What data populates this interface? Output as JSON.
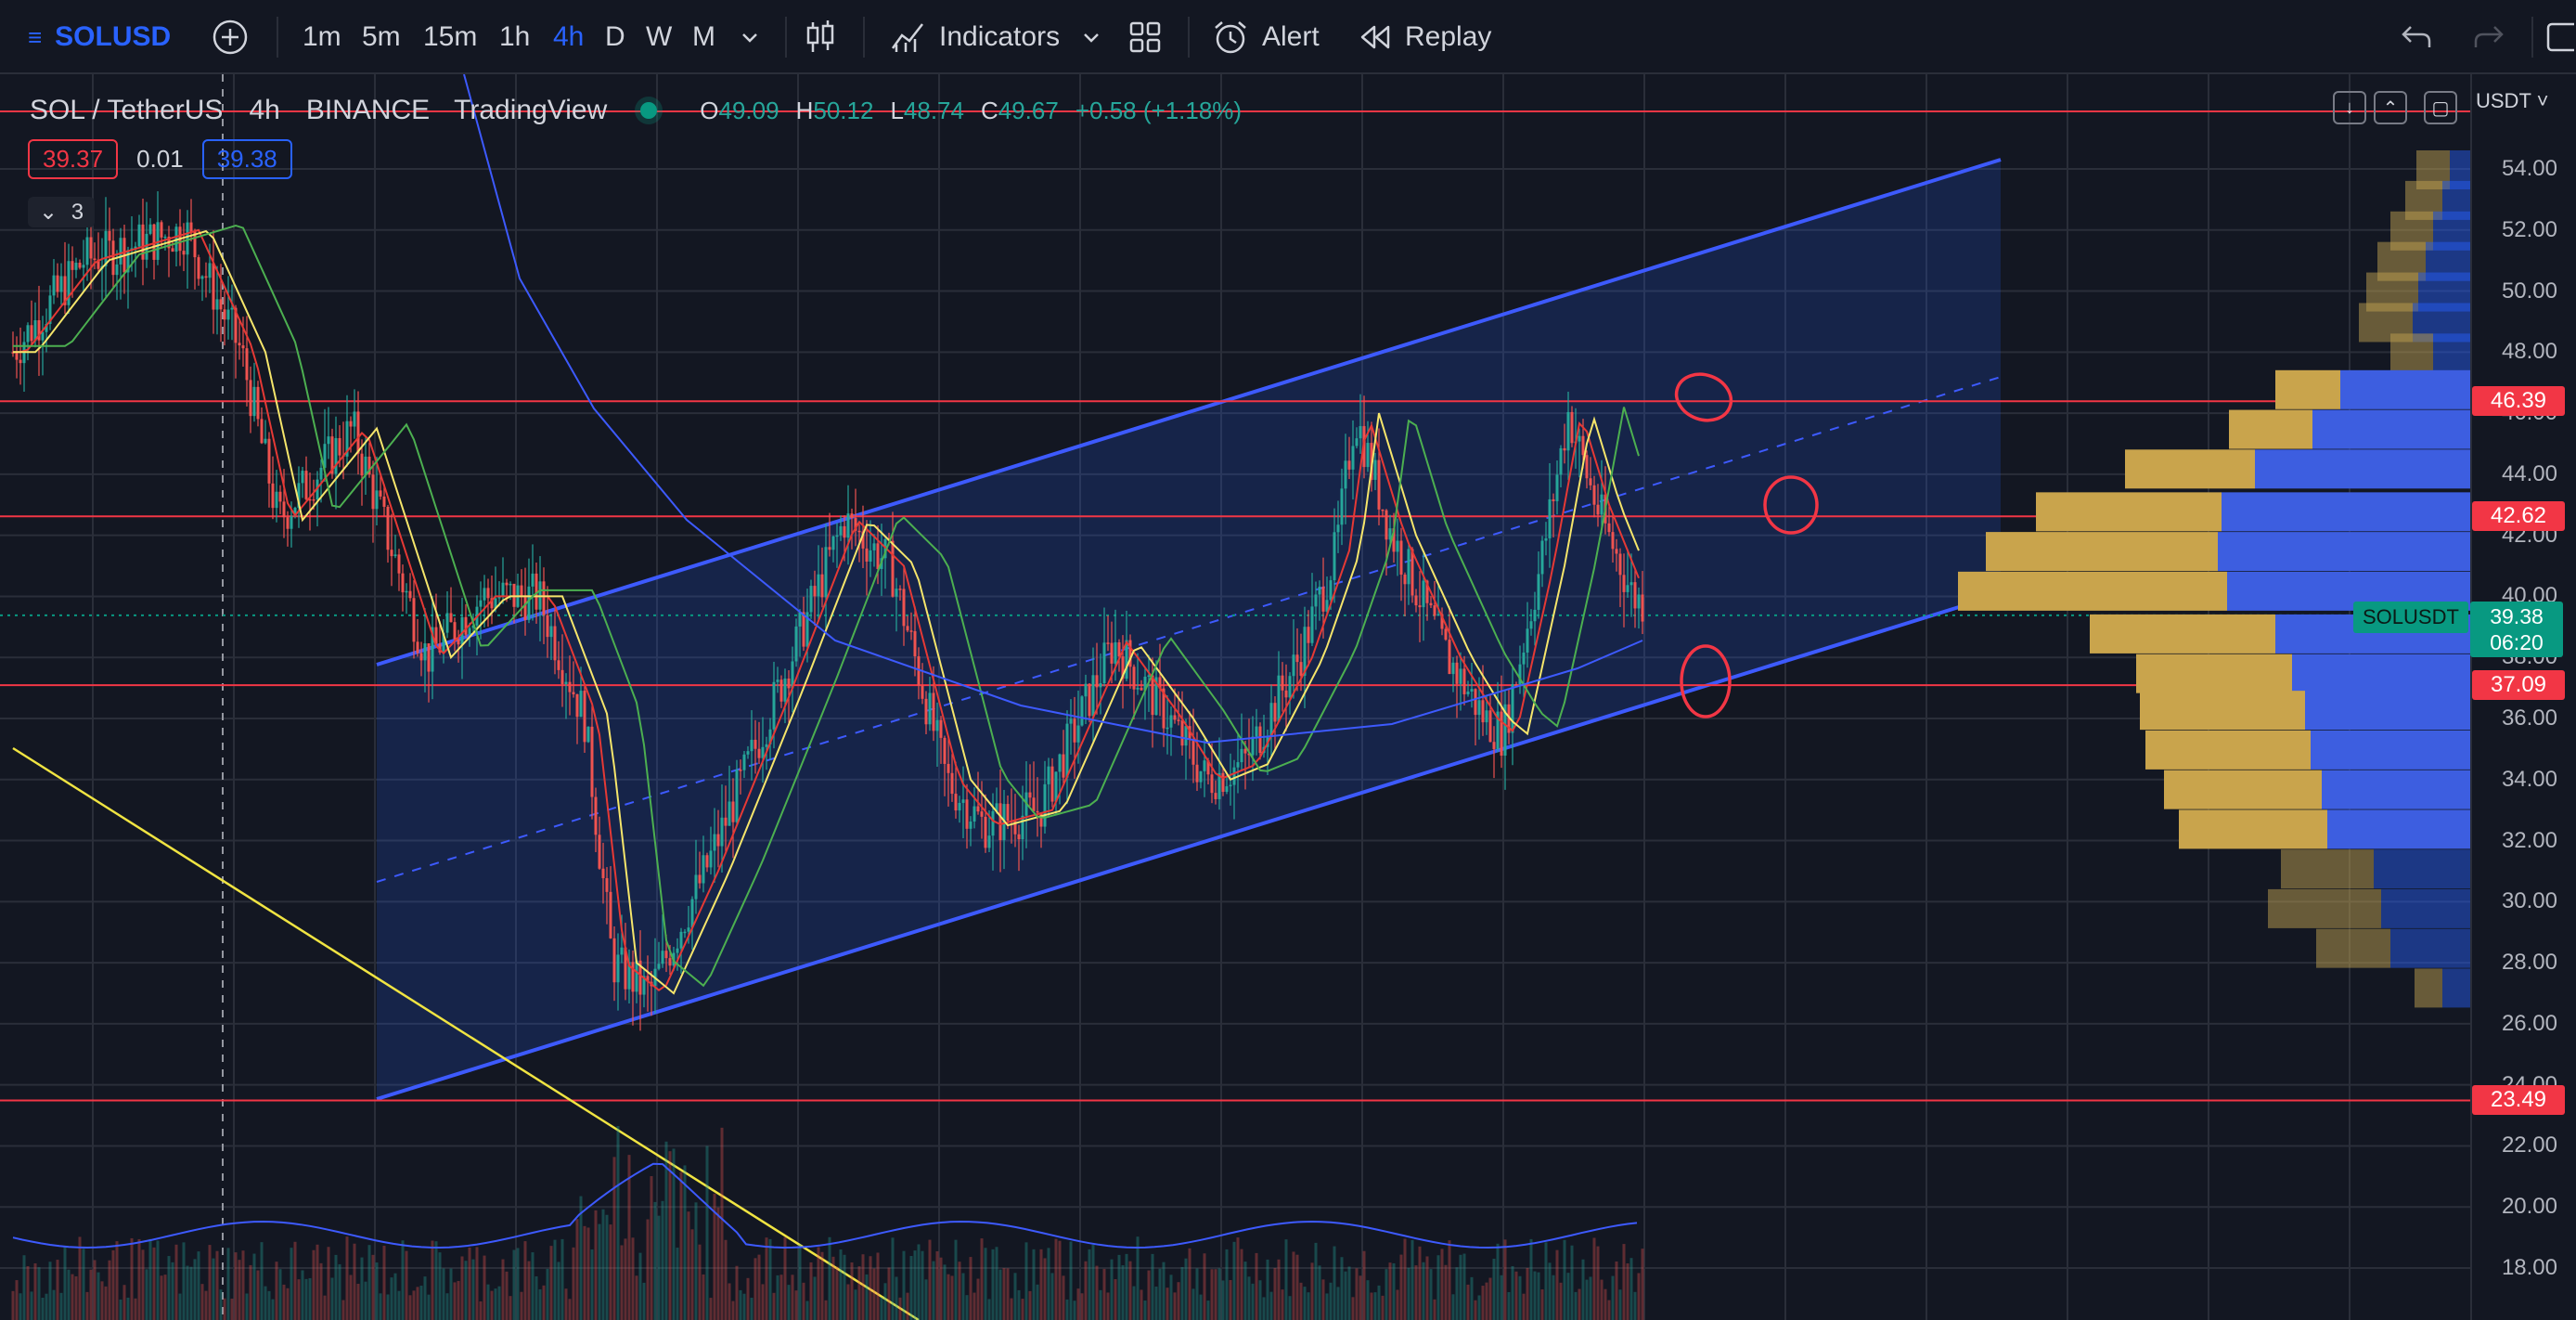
{
  "toolbar": {
    "symbol": "SOLUSD",
    "intervals": [
      "1m",
      "5m",
      "15m",
      "1h",
      "4h",
      "D",
      "W",
      "M"
    ],
    "active_interval": "4h",
    "indicators_label": "Indicators",
    "alert_label": "Alert",
    "replay_label": "Replay"
  },
  "legend": {
    "title": "SOL / TetherUS",
    "interval": "4h",
    "exchange": "BINANCE",
    "source": "TradingView",
    "open_label": "O",
    "open": "49.09",
    "high_label": "H",
    "high": "50.12",
    "low_label": "L",
    "low": "48.74",
    "close_label": "C",
    "close": "49.67",
    "change": "+0.58 (+1.18%)",
    "sell_price": "39.37",
    "spread": "0.01",
    "buy_price": "39.38",
    "collapsed_count": "3"
  },
  "axis": {
    "currency": "USDT",
    "ticks": [
      "54.00",
      "52.00",
      "50.00",
      "48.00",
      "46.00",
      "44.00",
      "42.00",
      "40.00",
      "38.00",
      "36.00",
      "34.00",
      "32.00",
      "30.00",
      "28.00",
      "26.00",
      "24.00",
      "22.00",
      "20.00",
      "18.00"
    ],
    "level_labels": [
      "46.39",
      "42.62",
      "37.09",
      "23.49"
    ],
    "current_symbol": "SOLUSDT",
    "current_price": "39.38",
    "countdown": "06:20"
  },
  "colors": {
    "up": "#26a69a",
    "down": "#ef5350",
    "channel": "#3d5afe",
    "level": "#f23645",
    "accent": "#2962ff",
    "trendline": "#f0e442"
  },
  "chart_data": {
    "type": "candlestick",
    "ylim": [
      17,
      55.5
    ],
    "horizontal_levels": [
      46.39,
      42.62,
      37.09,
      23.49
    ],
    "current_price": 39.38
  }
}
